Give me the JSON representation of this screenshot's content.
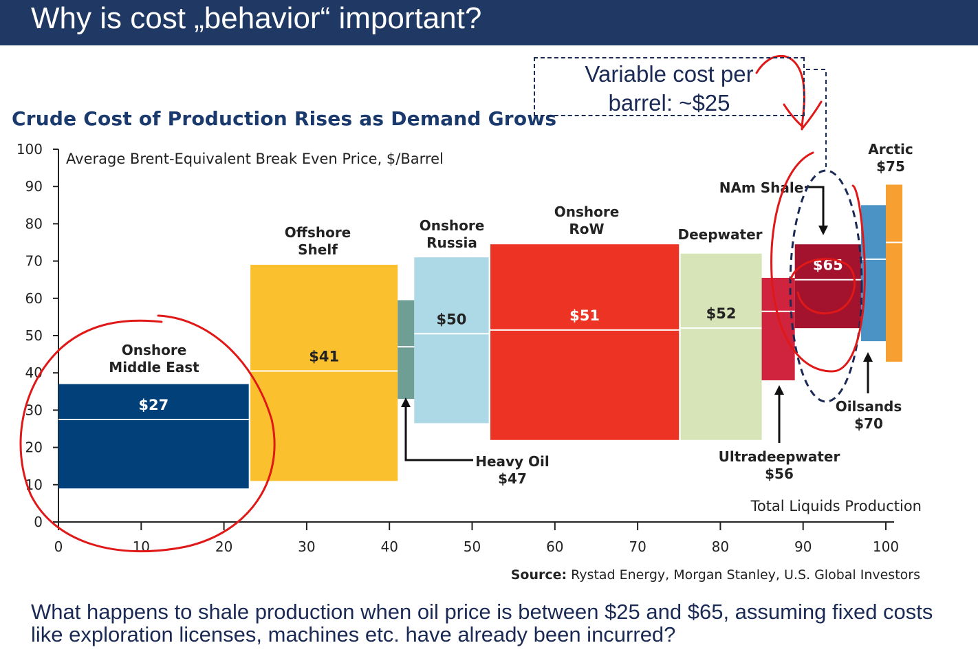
{
  "slide": {
    "title": "Why is cost „behavior“ important?",
    "callout_line1": "Variable cost per",
    "callout_line2": "barrel: ~$25",
    "question": "What happens to shale production when oil price is between $25 and $65, assuming fixed costs like exploration licenses, machines etc. have already been incurred?"
  },
  "chart_data": {
    "type": "bar",
    "title": "Crude Cost of Production Rises as Demand Grows",
    "ylabel": "Average Brent-Equivalent Break Even Price, $/Barrel",
    "xlabel": "Total Liquids Production",
    "source_bold": "Source:",
    "source_text": " Rystad Energy, Morgan Stanley, U.S. Global Investors",
    "xlim": [
      0,
      100
    ],
    "ylim": [
      0,
      100
    ],
    "x_ticks": [
      "0",
      "10",
      "20",
      "30",
      "40",
      "50",
      "60",
      "70",
      "80",
      "90",
      "100"
    ],
    "y_ticks": [
      "0",
      "10",
      "20",
      "30",
      "40",
      "50",
      "60",
      "70",
      "80",
      "90",
      "100"
    ],
    "segments": [
      {
        "name": "Onshore Middle East",
        "label1": "Onshore",
        "label2": "Middle East",
        "value_label": "$27",
        "x0": 0,
        "x1": 23,
        "low": 9,
        "high": 37,
        "mid": 27.5,
        "color": "#02407a",
        "text_color": "#ffffff"
      },
      {
        "name": "Offshore Shelf",
        "label1": "Offshore",
        "label2": "Shelf",
        "value_label": "$41",
        "x0": 23.2,
        "x1": 41,
        "low": 11,
        "high": 69,
        "mid": 40.5,
        "color": "#fbc02d",
        "text_color": "#222222"
      },
      {
        "name": "Heavy Oil",
        "label1": "Heavy Oil",
        "label2": "$47",
        "value_label": "",
        "x0": 41,
        "x1": 43,
        "low": 33,
        "high": 59.5,
        "mid": 47,
        "color": "#6f9e94",
        "text_color": "#222222"
      },
      {
        "name": "Onshore Russia",
        "label1": "Onshore",
        "label2": "Russia",
        "value_label": "$50",
        "x0": 43,
        "x1": 52,
        "low": 26.5,
        "high": 71,
        "mid": 50.5,
        "color": "#add8e6",
        "text_color": "#222222"
      },
      {
        "name": "Onshore RoW",
        "label1": "Onshore",
        "label2": "RoW",
        "value_label": "$51",
        "x0": 52.2,
        "x1": 75,
        "low": 22,
        "high": 74.5,
        "mid": 51.5,
        "color": "#ed3424",
        "text_color": "#ffffff"
      },
      {
        "name": "Deepwater",
        "label1": "Deepwater",
        "label2": "",
        "value_label": "$52",
        "x0": 75.2,
        "x1": 85,
        "low": 22,
        "high": 72,
        "mid": 52,
        "color": "#d6e4b8",
        "text_color": "#222222"
      },
      {
        "name": "Ultradeepwater",
        "label1": "Ultradeepwater",
        "label2": "$56",
        "value_label": "",
        "x0": 85,
        "x1": 89,
        "low": 38,
        "high": 65.5,
        "mid": 56.5,
        "color": "#d0243e",
        "text_color": "#222222"
      },
      {
        "name": "NAm Shale",
        "label1": "NAm Shale",
        "label2": "",
        "value_label": "$65",
        "x0": 89,
        "x1": 97,
        "low": 52,
        "high": 74.5,
        "mid": 65,
        "color": "#a3132e",
        "text_color": "#ffffff"
      },
      {
        "name": "Oilsands",
        "label1": "Oilsands",
        "label2": "$70",
        "value_label": "",
        "x0": 97,
        "x1": 100,
        "low": 48.5,
        "high": 85,
        "mid": 70.5,
        "color": "#4c93c5",
        "text_color": "#222222"
      },
      {
        "name": "Arctic",
        "label1": "Arctic",
        "label2": "$75",
        "value_label": "",
        "x0": 100,
        "x1": 102,
        "low": 43,
        "high": 90.5,
        "mid": 75,
        "color": "#f7a031",
        "text_color": "#222222"
      }
    ]
  }
}
